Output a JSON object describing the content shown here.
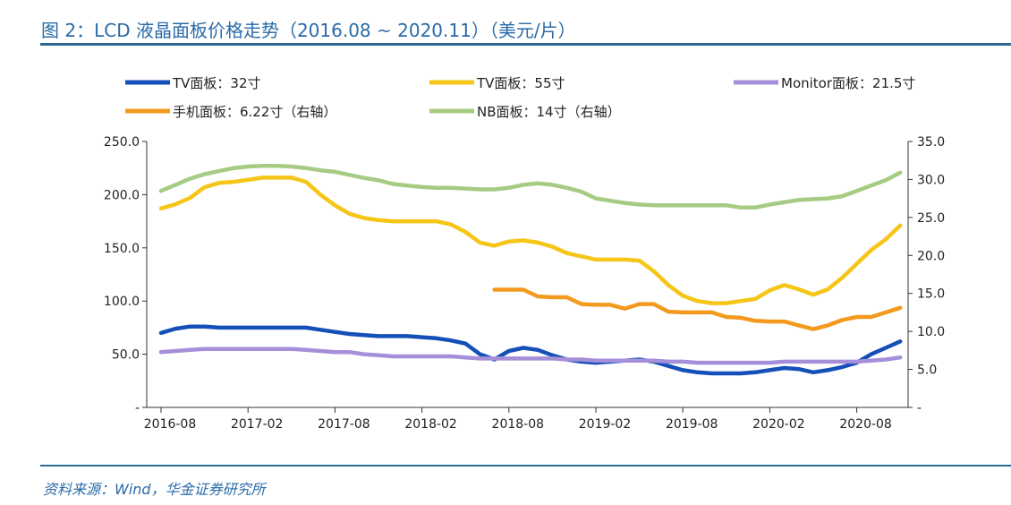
{
  "title": "图 2：LCD 液晶面板价格走势（2016.08 ~ 2020.11）（美元/片）",
  "source": "资料来源：Wind，华金证券研究所",
  "chart_data": {
    "type": "line",
    "x": [
      "2016-08",
      "2016-09",
      "2016-10",
      "2016-11",
      "2016-12",
      "2017-01",
      "2017-02",
      "2017-03",
      "2017-04",
      "2017-05",
      "2017-06",
      "2017-07",
      "2017-08",
      "2017-09",
      "2017-10",
      "2017-11",
      "2017-12",
      "2018-01",
      "2018-02",
      "2018-03",
      "2018-04",
      "2018-05",
      "2018-06",
      "2018-07",
      "2018-08",
      "2018-09",
      "2018-10",
      "2018-11",
      "2018-12",
      "2019-01",
      "2019-02",
      "2019-03",
      "2019-04",
      "2019-05",
      "2019-06",
      "2019-07",
      "2019-08",
      "2019-09",
      "2019-10",
      "2019-11",
      "2019-12",
      "2020-01",
      "2020-02",
      "2020-03",
      "2020-04",
      "2020-05",
      "2020-06",
      "2020-07",
      "2020-08",
      "2020-09",
      "2020-10",
      "2020-11"
    ],
    "xtick_labels": [
      "2016-08",
      "2017-02",
      "2017-08",
      "2018-02",
      "2018-08",
      "2019-02",
      "2019-08",
      "2020-02",
      "2020-08"
    ],
    "left_axis": {
      "ylim": [
        0,
        250
      ],
      "tick_labels": [
        "-",
        "50.0",
        "100.0",
        "150.0",
        "200.0",
        "250.0"
      ]
    },
    "right_axis": {
      "ylim": [
        0,
        35
      ],
      "tick_labels": [
        "-",
        "5.0",
        "10.0",
        "15.0",
        "20.0",
        "25.0",
        "30.0",
        "35.0"
      ]
    },
    "legend_position": "top",
    "grid": false,
    "series": [
      {
        "name": "TV面板：32寸",
        "axis": "left",
        "color": "#1550b8",
        "values": [
          70,
          74,
          76,
          76,
          75,
          75,
          75,
          75,
          75,
          75,
          75,
          73,
          71,
          69,
          68,
          67,
          67,
          67,
          66,
          65,
          63,
          60,
          50,
          45,
          53,
          56,
          54,
          49,
          45,
          43,
          42,
          43,
          44,
          45,
          43,
          39,
          35,
          33,
          32,
          32,
          32,
          33,
          35,
          37,
          36,
          33,
          35,
          38,
          42,
          50,
          56,
          62
        ]
      },
      {
        "name": "TV面板：55寸",
        "axis": "left",
        "color": "#f5c518",
        "values": [
          187,
          191,
          197,
          207,
          211,
          212,
          214,
          216,
          216,
          216,
          212,
          200,
          190,
          182,
          178,
          176,
          175,
          175,
          175,
          175,
          172,
          165,
          155,
          152,
          156,
          157,
          155,
          151,
          145,
          142,
          139,
          139,
          139,
          138,
          128,
          115,
          105,
          100,
          98,
          98,
          100,
          102,
          110,
          115,
          111,
          106,
          111,
          122,
          135,
          148,
          158,
          171
        ]
      },
      {
        "name": "Monitor面板：21.5寸",
        "axis": "left",
        "color": "#a48fd8",
        "values": [
          52,
          53,
          54,
          55,
          55,
          55,
          55,
          55,
          55,
          55,
          54,
          53,
          52,
          52,
          50,
          49,
          48,
          48,
          48,
          48,
          48,
          47,
          46,
          46,
          46,
          46,
          46,
          46,
          45,
          45,
          44,
          44,
          44,
          44,
          44,
          43,
          43,
          42,
          42,
          42,
          42,
          42,
          42,
          43,
          43,
          43,
          43,
          43,
          43,
          44,
          45,
          47
        ]
      },
      {
        "name": "手机面板：6.22寸（右轴）",
        "axis": "right",
        "color": "#f39a1e",
        "values": [
          null,
          null,
          null,
          null,
          null,
          null,
          null,
          null,
          null,
          null,
          null,
          null,
          null,
          null,
          null,
          null,
          null,
          null,
          null,
          null,
          null,
          null,
          null,
          15.5,
          15.5,
          15.5,
          14.6,
          14.5,
          14.5,
          13.6,
          13.5,
          13.5,
          13.0,
          13.6,
          13.6,
          12.6,
          12.5,
          12.5,
          12.5,
          11.9,
          11.8,
          11.4,
          11.3,
          11.3,
          10.8,
          10.3,
          10.8,
          11.5,
          11.9,
          11.9,
          12.5,
          13.1
        ]
      },
      {
        "name": "NB面板：14寸（右轴）",
        "axis": "right",
        "color": "#a5cc82",
        "values": [
          28.5,
          29.3,
          30.1,
          30.7,
          31.1,
          31.5,
          31.7,
          31.8,
          31.8,
          31.7,
          31.5,
          31.2,
          31.0,
          30.6,
          30.2,
          29.9,
          29.4,
          29.2,
          29.0,
          28.9,
          28.9,
          28.8,
          28.7,
          28.7,
          28.9,
          29.3,
          29.5,
          29.3,
          28.9,
          28.4,
          27.5,
          27.2,
          26.9,
          26.7,
          26.6,
          26.6,
          26.6,
          26.6,
          26.6,
          26.6,
          26.3,
          26.3,
          26.7,
          27.0,
          27.3,
          27.4,
          27.5,
          27.8,
          28.5,
          29.2,
          29.9,
          30.9
        ]
      }
    ]
  }
}
